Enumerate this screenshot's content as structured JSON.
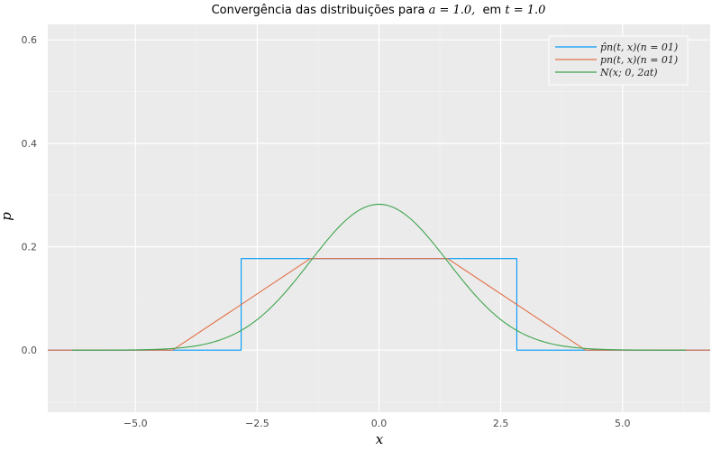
{
  "chart_data": {
    "type": "line",
    "title": {
      "prefix": "Convergência das distribuições para ",
      "param_a": "a = 1.0,",
      "middle": "  em ",
      "param_t": "t = 1.0"
    },
    "xlabel": "x",
    "ylabel": "p",
    "xlim": [
      -6.8,
      6.8
    ],
    "ylim": [
      -0.12,
      0.63
    ],
    "xticks": [
      -5.0,
      -2.5,
      0.0,
      2.5,
      5.0
    ],
    "xtick_labels": [
      "−5.0",
      "−2.5",
      "0.0",
      "2.5",
      "5.0"
    ],
    "yticks": [
      0.0,
      0.2,
      0.4,
      0.6
    ],
    "ytick_labels": [
      "0.0",
      "0.2",
      "0.4",
      "0.6"
    ],
    "grid": true,
    "legend_position": "top-right",
    "series": [
      {
        "name": "p̂n(t, x)(n = 01)",
        "color": "#009af9",
        "kind": "step",
        "x": [
          -6.8,
          -2.83,
          -2.83,
          2.83,
          2.83,
          6.8
        ],
        "y": [
          0.0,
          0.0,
          0.177,
          0.177,
          0.0,
          0.0
        ]
      },
      {
        "name": "pn(t, x)(n = 01)",
        "color": "#e26f46",
        "kind": "polyline",
        "x": [
          -6.8,
          -4.24,
          -1.41,
          1.41,
          4.24,
          6.8
        ],
        "y": [
          0.0,
          0.0,
          0.177,
          0.177,
          0.0,
          0.0
        ]
      },
      {
        "name": "N(x; 0, 2at)",
        "color": "#3da44d",
        "kind": "function",
        "function": "normal",
        "mean": 0.0,
        "variance": 2.0,
        "peak": 0.282,
        "x_range": [
          -6.3,
          6.3
        ]
      }
    ]
  }
}
